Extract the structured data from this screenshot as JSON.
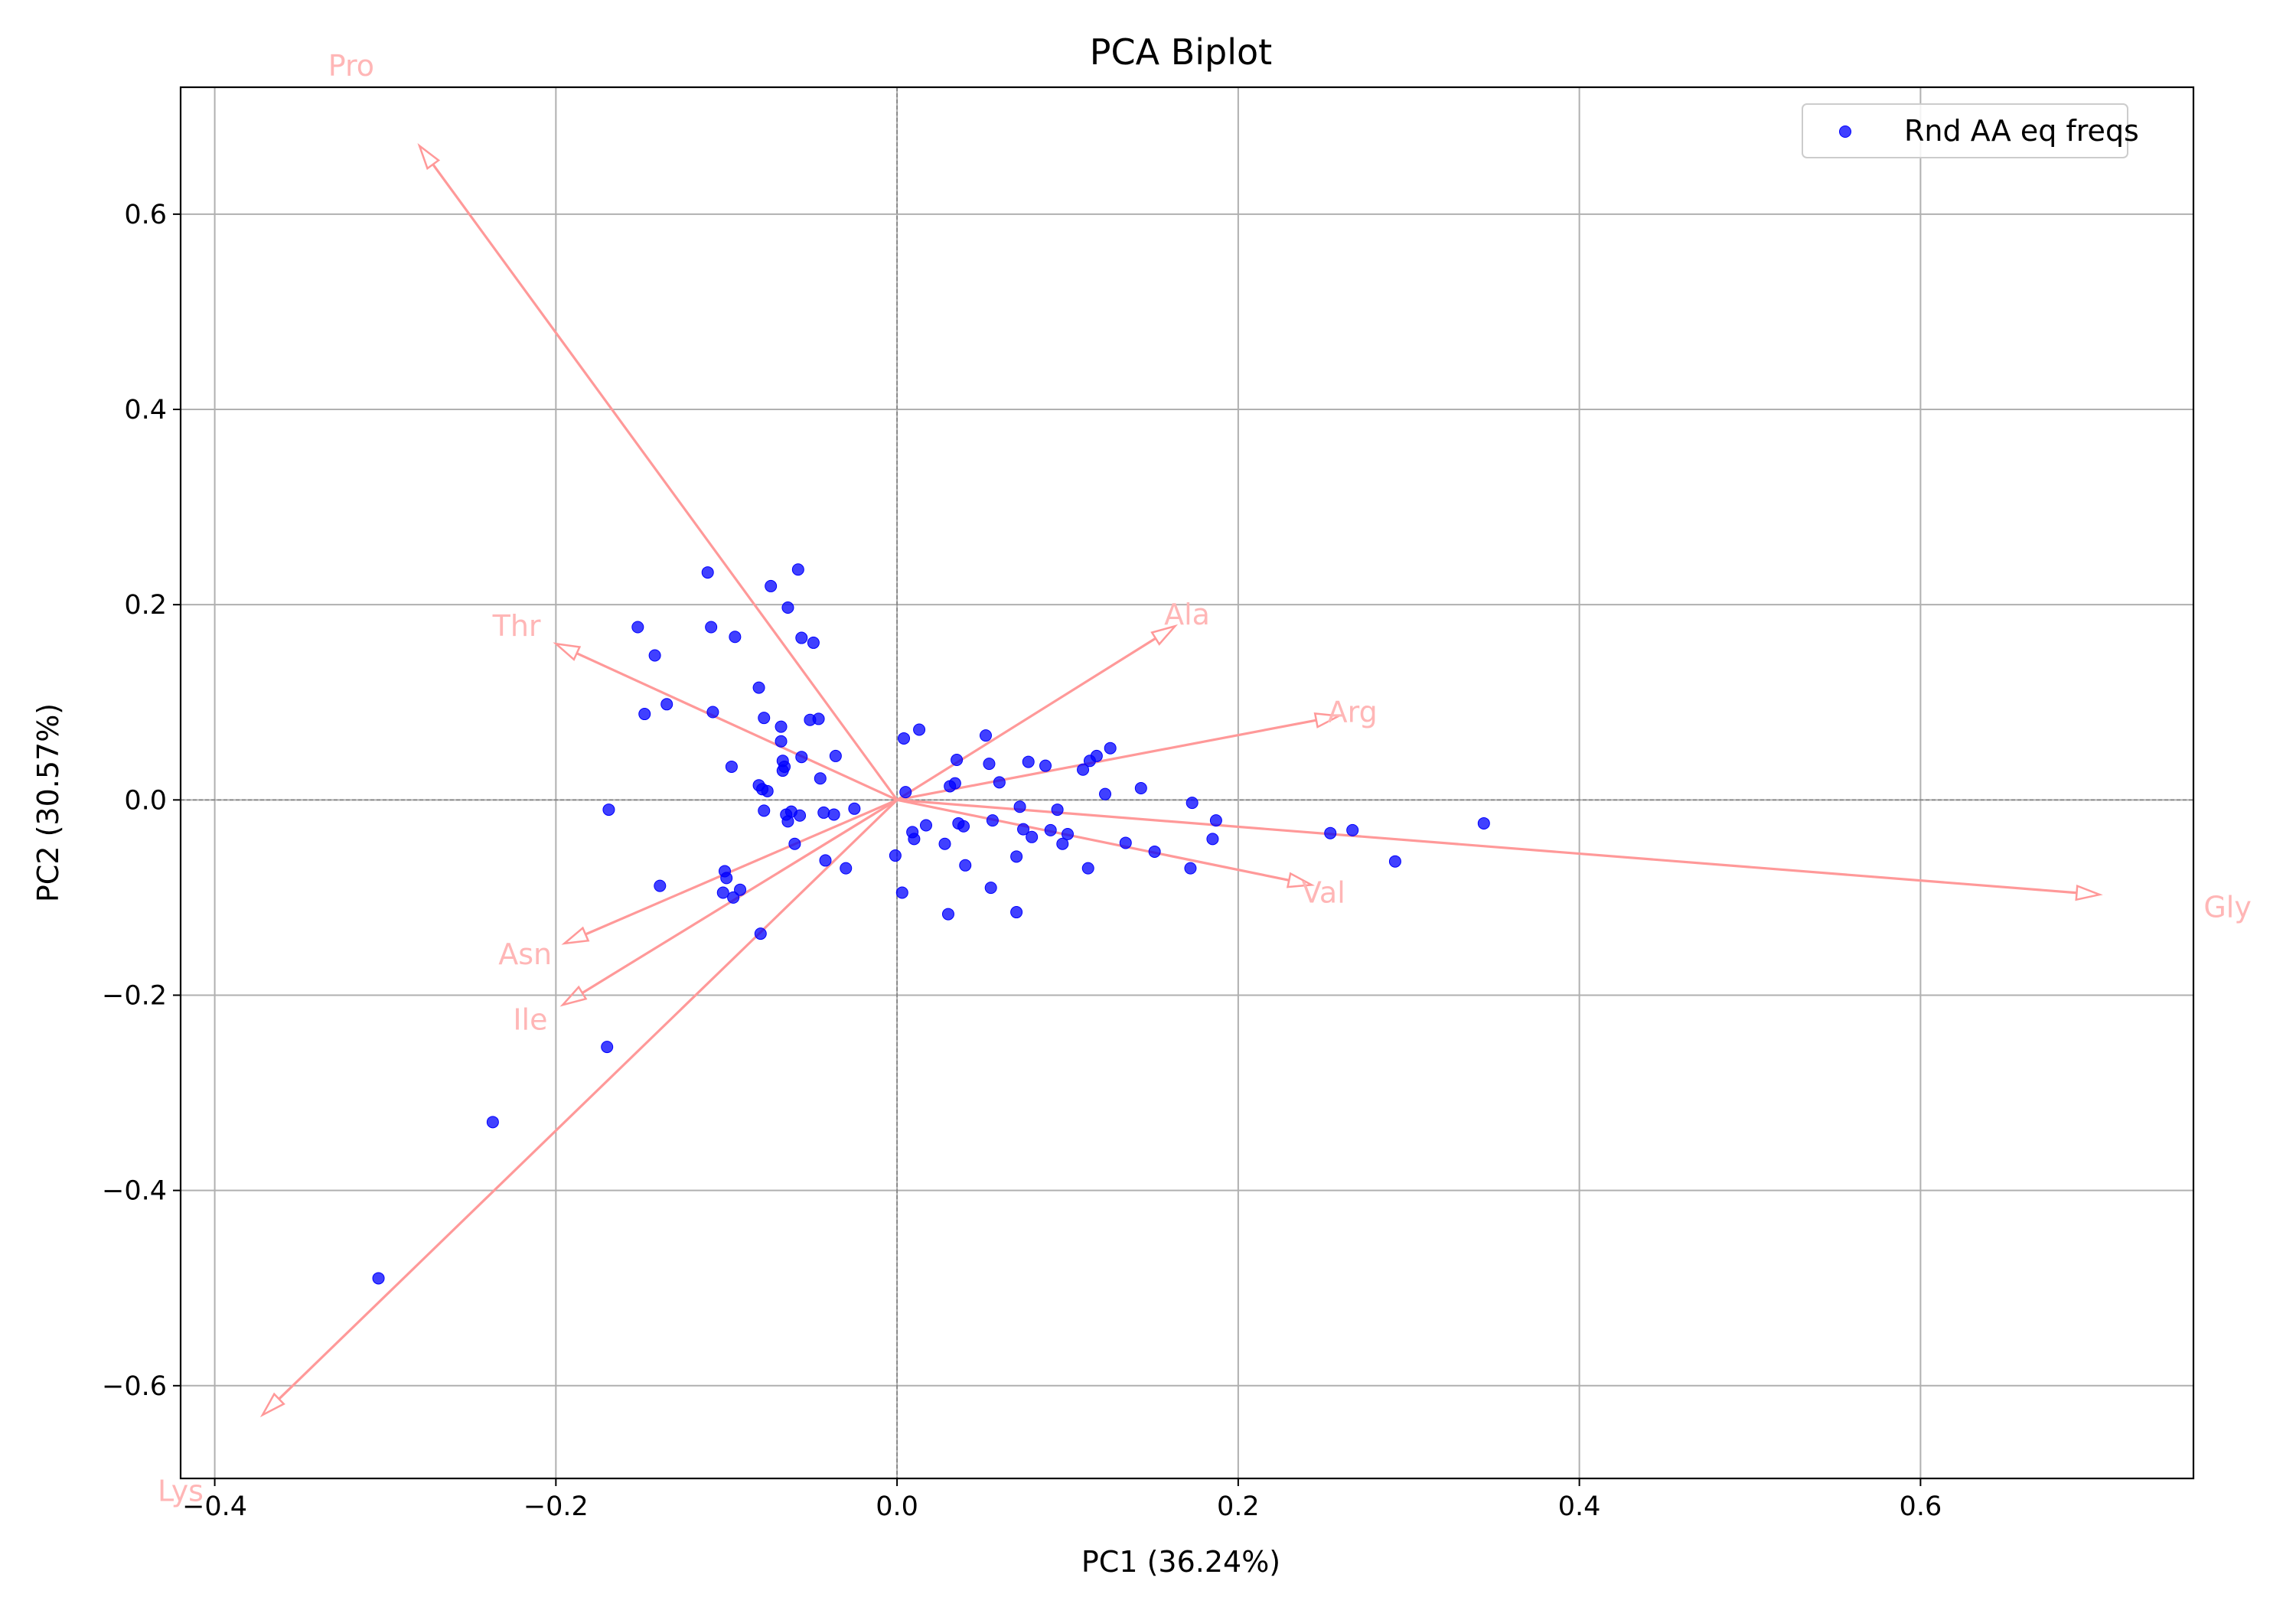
{
  "chart_data": {
    "type": "scatter",
    "title": "PCA Biplot",
    "xlabel": "PC1 (36.24%)",
    "ylabel": "PC2 (30.57%)",
    "xlim": [
      -0.42,
      0.76
    ],
    "ylim": [
      -0.695,
      0.73
    ],
    "xticks": [
      -0.4,
      -0.2,
      0.0,
      0.2,
      0.4,
      0.6
    ],
    "xtick_labels": [
      "−0.4",
      "−0.2",
      "0.0",
      "0.2",
      "0.4",
      "0.6"
    ],
    "yticks": [
      -0.6,
      -0.4,
      -0.2,
      0.0,
      0.2,
      0.4,
      0.6
    ],
    "ytick_labels": [
      "−0.6",
      "−0.4",
      "−0.2",
      "0.0",
      "0.2",
      "0.4",
      "0.6"
    ],
    "grid": true,
    "legend_position": "top-right",
    "colors": {
      "points": "#0000ff",
      "loadings": "#ff9999",
      "loading_labels": "#ffb6b6"
    },
    "series": [
      {
        "name": "Rnd AA eq freqs",
        "points": [
          [
            -0.304,
            -0.49
          ],
          [
            -0.237,
            -0.33
          ],
          [
            -0.17,
            -0.253
          ],
          [
            -0.169,
            -0.01
          ],
          [
            -0.152,
            0.177
          ],
          [
            -0.148,
            0.088
          ],
          [
            -0.142,
            0.148
          ],
          [
            -0.139,
            -0.088
          ],
          [
            -0.135,
            0.098
          ],
          [
            -0.111,
            0.233
          ],
          [
            -0.109,
            0.177
          ],
          [
            -0.108,
            0.09
          ],
          [
            -0.102,
            -0.095
          ],
          [
            -0.101,
            -0.073
          ],
          [
            -0.1,
            -0.08
          ],
          [
            -0.097,
            0.034
          ],
          [
            -0.096,
            -0.1
          ],
          [
            -0.095,
            0.167
          ],
          [
            -0.092,
            -0.092
          ],
          [
            -0.081,
            0.115
          ],
          [
            -0.081,
            0.015
          ],
          [
            -0.08,
            -0.137
          ],
          [
            -0.079,
            0.011
          ],
          [
            -0.078,
            0.084
          ],
          [
            -0.078,
            -0.011
          ],
          [
            -0.076,
            0.009
          ],
          [
            -0.074,
            0.219
          ],
          [
            -0.068,
            0.075
          ],
          [
            -0.068,
            0.06
          ],
          [
            -0.067,
            0.04
          ],
          [
            -0.067,
            0.03
          ],
          [
            -0.066,
            0.034
          ],
          [
            -0.065,
            -0.015
          ],
          [
            -0.064,
            -0.022
          ],
          [
            -0.064,
            0.197
          ],
          [
            -0.062,
            -0.012
          ],
          [
            -0.06,
            -0.045
          ],
          [
            -0.058,
            0.236
          ],
          [
            -0.057,
            -0.016
          ],
          [
            -0.056,
            0.044
          ],
          [
            -0.056,
            0.166
          ],
          [
            -0.051,
            0.082
          ],
          [
            -0.049,
            0.161
          ],
          [
            -0.046,
            0.083
          ],
          [
            -0.045,
            0.022
          ],
          [
            -0.043,
            -0.013
          ],
          [
            -0.042,
            -0.062
          ],
          [
            -0.037,
            -0.015
          ],
          [
            -0.036,
            0.045
          ],
          [
            -0.03,
            -0.07
          ],
          [
            -0.025,
            -0.009
          ],
          [
            -0.001,
            -0.057
          ],
          [
            0.003,
            -0.095
          ],
          [
            0.004,
            0.063
          ],
          [
            0.005,
            0.008
          ],
          [
            0.009,
            -0.033
          ],
          [
            0.01,
            -0.04
          ],
          [
            0.013,
            0.072
          ],
          [
            0.017,
            -0.026
          ],
          [
            0.028,
            -0.045
          ],
          [
            0.03,
            -0.117
          ],
          [
            0.031,
            0.014
          ],
          [
            0.034,
            0.017
          ],
          [
            0.035,
            0.041
          ],
          [
            0.036,
            -0.024
          ],
          [
            0.039,
            -0.027
          ],
          [
            0.04,
            -0.067
          ],
          [
            0.052,
            0.066
          ],
          [
            0.054,
            0.037
          ],
          [
            0.055,
            -0.09
          ],
          [
            0.056,
            -0.021
          ],
          [
            0.06,
            0.018
          ],
          [
            0.07,
            -0.058
          ],
          [
            0.07,
            -0.115
          ],
          [
            0.072,
            -0.007
          ],
          [
            0.074,
            -0.03
          ],
          [
            0.077,
            0.039
          ],
          [
            0.079,
            -0.038
          ],
          [
            0.087,
            0.035
          ],
          [
            0.09,
            -0.031
          ],
          [
            0.094,
            -0.01
          ],
          [
            0.097,
            -0.045
          ],
          [
            0.1,
            -0.035
          ],
          [
            0.109,
            0.031
          ],
          [
            0.112,
            -0.07
          ],
          [
            0.113,
            0.04
          ],
          [
            0.117,
            0.045
          ],
          [
            0.122,
            0.006
          ],
          [
            0.125,
            0.053
          ],
          [
            0.134,
            -0.044
          ],
          [
            0.143,
            0.012
          ],
          [
            0.151,
            -0.053
          ],
          [
            0.172,
            -0.07
          ],
          [
            0.173,
            -0.003
          ],
          [
            0.185,
            -0.04
          ],
          [
            0.187,
            -0.021
          ],
          [
            0.254,
            -0.034
          ],
          [
            0.267,
            -0.031
          ],
          [
            0.292,
            -0.063
          ],
          [
            0.344,
            -0.024
          ]
        ]
      }
    ],
    "loadings": [
      {
        "name": "Pro",
        "x": -0.28,
        "y": 0.67,
        "label_x": -0.32,
        "label_y": 0.752
      },
      {
        "name": "Thr",
        "x": -0.2,
        "y": 0.16,
        "label_x": -0.223,
        "label_y": 0.178
      },
      {
        "name": "Ala",
        "x": 0.163,
        "y": 0.178,
        "label_x": 0.17,
        "label_y": 0.19
      },
      {
        "name": "Arg",
        "x": 0.259,
        "y": 0.086,
        "label_x": 0.267,
        "label_y": 0.09
      },
      {
        "name": "Val",
        "x": 0.243,
        "y": -0.087,
        "label_x": 0.25,
        "label_y": -0.095
      },
      {
        "name": "Gly",
        "x": 0.705,
        "y": -0.097,
        "label_x": 0.78,
        "label_y": -0.11
      },
      {
        "name": "Asn",
        "x": -0.195,
        "y": -0.147,
        "label_x": -0.218,
        "label_y": -0.158
      },
      {
        "name": "Ile",
        "x": -0.196,
        "y": -0.21,
        "label_x": -0.215,
        "label_y": -0.225
      },
      {
        "name": "Lys",
        "x": -0.372,
        "y": -0.63,
        "label_x": -0.42,
        "label_y": -0.708
      }
    ]
  }
}
